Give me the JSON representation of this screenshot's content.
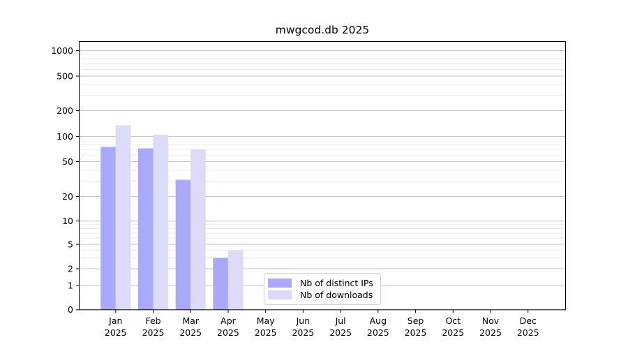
{
  "chart_data": {
    "type": "bar",
    "title": "mwgcod.db 2025",
    "x_year_label": "2025",
    "categories": [
      "Jan",
      "Feb",
      "Mar",
      "Apr",
      "May",
      "Jun",
      "Jul",
      "Aug",
      "Sep",
      "Oct",
      "Nov",
      "Dec"
    ],
    "series": [
      {
        "name": "Nb of distinct IPs",
        "color": "#a9a9fa",
        "values": [
          75,
          72,
          31,
          3,
          0,
          0,
          0,
          0,
          0,
          0,
          0,
          0
        ]
      },
      {
        "name": "Nb of downloads",
        "color": "#dcdcfa",
        "values": [
          135,
          105,
          70,
          4,
          0,
          0,
          0,
          0,
          0,
          0,
          0,
          0
        ]
      }
    ],
    "y_ticks": [
      0,
      1,
      2,
      5,
      10,
      20,
      50,
      100,
      200,
      500,
      1000
    ],
    "y_minor_gridlines": [
      3,
      4,
      6,
      7,
      8,
      9,
      30,
      40,
      60,
      70,
      80,
      90,
      300,
      400,
      600,
      700,
      800,
      900
    ],
    "y_scale": "log-like",
    "ylim": [
      0,
      1300
    ],
    "grid": true,
    "legend_position": "lower center (inside axes)",
    "colors": {
      "bar_dark": "#a9a9fa",
      "bar_light": "#dcdcfa",
      "major_grid": "#c6c6c6",
      "minor_grid": "#ececec",
      "spine": "#000000",
      "legend_border": "#d2d2d2"
    }
  }
}
